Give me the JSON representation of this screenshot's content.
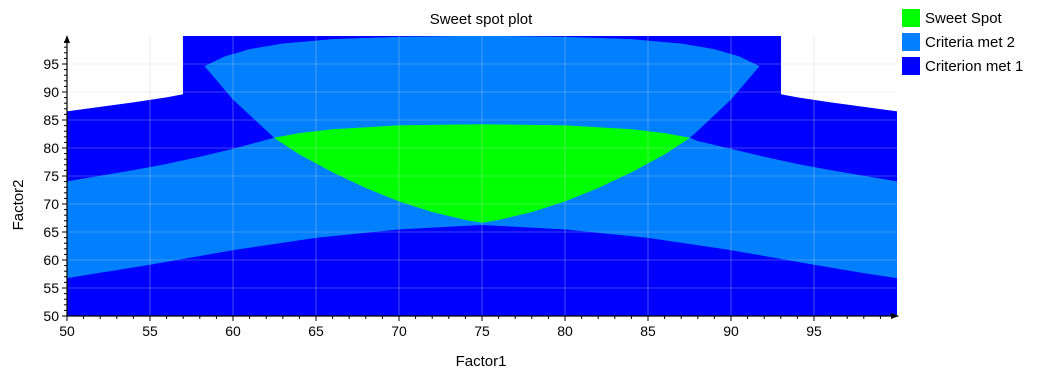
{
  "chart_data": {
    "type": "area",
    "title": "Sweet spot plot",
    "xlabel": "Factor1",
    "ylabel": "Factor2",
    "xlim": [
      50,
      100
    ],
    "ylim": [
      50,
      100
    ],
    "x_ticks": [
      50,
      55,
      60,
      65,
      70,
      75,
      80,
      85,
      90,
      95
    ],
    "y_ticks": [
      50,
      55,
      60,
      65,
      70,
      75,
      80,
      85,
      90,
      95
    ],
    "grid": true,
    "legend_position": "top-right",
    "series": [
      {
        "name": "Sweet Spot",
        "color": "#00ff00",
        "x": [
          62.5,
          64,
          66,
          68,
          70,
          72,
          74,
          75,
          76,
          78,
          80,
          82,
          84,
          86,
          87.5,
          86,
          84,
          80,
          75,
          70,
          66,
          64
        ],
        "y": [
          81.8,
          78.9,
          75.7,
          72.9,
          70.5,
          68.6,
          67.2,
          66.7,
          67.2,
          68.6,
          70.5,
          72.9,
          75.7,
          78.9,
          81.8,
          82.6,
          83.3,
          84,
          84.2,
          84,
          83.3,
          82.6
        ]
      },
      {
        "name": "Criteria met 2",
        "color": "#0080ff",
        "regions": [
          {
            "x": [
              58.3,
              60,
              62.5,
              64,
              66,
              68,
              70,
              72,
              74,
              75,
              76,
              78,
              80,
              82,
              84,
              86,
              87.5,
              88,
              90,
              91.7,
              90.5,
              89,
              87,
              84,
              80,
              75,
              70,
              66,
              63,
              61,
              59.5
            ],
            "y": [
              94.6,
              88.7,
              81.8,
              78.9,
              75.7,
              72.9,
              70.5,
              68.6,
              67.2,
              66.7,
              67.2,
              68.6,
              70.5,
              72.9,
              75.7,
              78.9,
              81.8,
              83.1,
              88.7,
              94.6,
              96.3,
              97.6,
              98.6,
              99.4,
              99.8,
              100,
              99.8,
              99.4,
              98.6,
              97.6,
              96.3
            ]
          },
          {
            "x": [
              50,
              52,
              54,
              56,
              58,
              60,
              62.5,
              64,
              66,
              68,
              70,
              72,
              74,
              75,
              76,
              78,
              80,
              82,
              84,
              86,
              87.5,
              88,
              90,
              92,
              94,
              96,
              98,
              100,
              100,
              98,
              95,
              90,
              85,
              80,
              75,
              70,
              65,
              60,
              55,
              50
            ],
            "y": [
              74,
              75,
              76,
              77.1,
              78.4,
              79.8,
              81.8,
              78.9,
              75.7,
              72.9,
              70.5,
              68.6,
              67.2,
              66.7,
              67.2,
              68.6,
              70.5,
              72.9,
              75.7,
              78.9,
              81.8,
              81.2,
              79.8,
              78.4,
              77.1,
              76,
              75,
              74,
              56.8,
              57.7,
              59.2,
              61.8,
              64,
              65.5,
              66.3,
              65.5,
              64,
              61.8,
              59.2,
              56.8
            ]
          }
        ]
      },
      {
        "name": "Criterion met 1",
        "color": "#0000ff",
        "regions": [
          {
            "x": [
              57,
              93,
              93,
              57
            ],
            "y": [
              50,
              50,
              100,
              100
            ]
          },
          {
            "x": [
              50,
              52,
              54,
              56,
              58,
              60,
              62,
              64,
              66,
              68,
              70,
              72,
              74,
              75,
              76,
              78,
              80,
              82,
              84,
              86,
              88,
              90,
              92,
              94,
              96,
              98,
              100,
              100,
              50
            ],
            "y": [
              86.5,
              87.3,
              88.1,
              89,
              90.1,
              91.3,
              92.6,
              93.8,
              95.2,
              96.6,
              98,
              99.3,
              100,
              100,
              100,
              99.3,
              98,
              96.6,
              95.2,
              93.8,
              92.6,
              91.3,
              90.1,
              89,
              88.1,
              87.3,
              86.5,
              50,
              50
            ]
          }
        ]
      }
    ]
  }
}
